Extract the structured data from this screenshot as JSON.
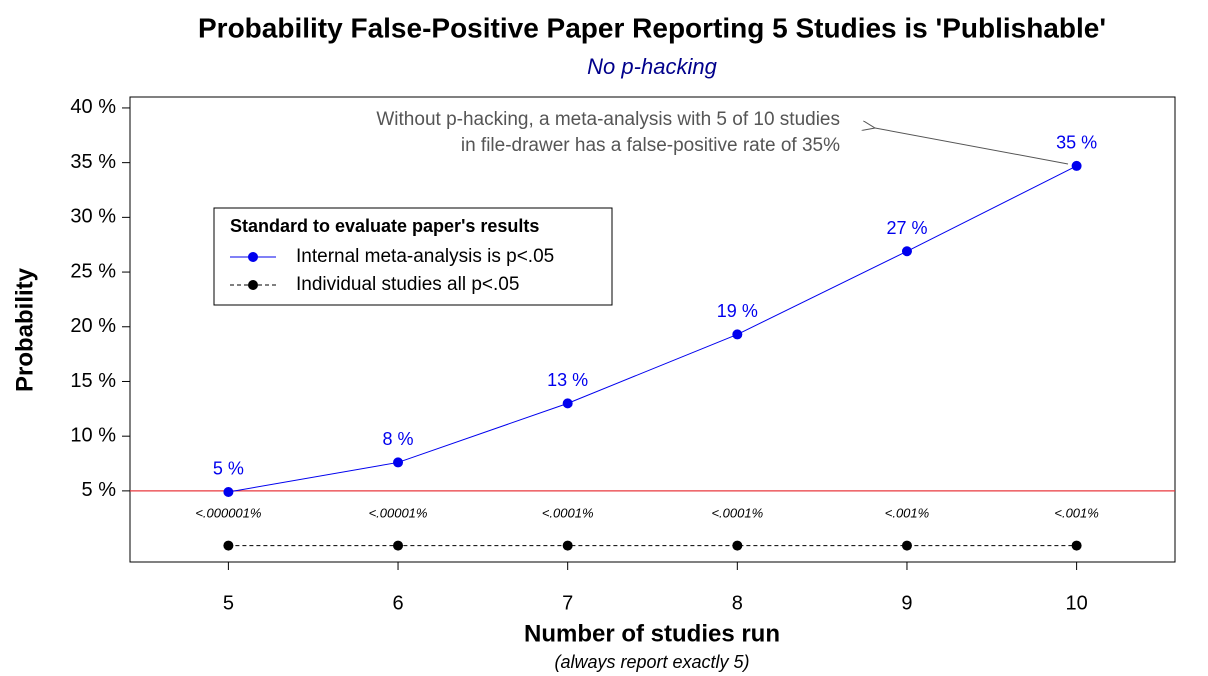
{
  "chart_data": {
    "type": "line",
    "title": "Probability False-Positive Paper Reporting 5 Studies is 'Publishable'",
    "subtitle": "No p-hacking",
    "x_label": "Number of studies run",
    "x_sublabel": "(always report exactly 5)",
    "y_label": "Probability",
    "x": [
      5,
      6,
      7,
      8,
      9,
      10
    ],
    "xlim": [
      4.42,
      10.58
    ],
    "xticks": [
      5,
      6,
      7,
      8,
      9,
      10
    ],
    "ylim": [
      -1.5,
      41
    ],
    "yticks": [
      {
        "value": 5,
        "label": "5 %"
      },
      {
        "value": 10,
        "label": "10 %"
      },
      {
        "value": 15,
        "label": "15 %"
      },
      {
        "value": 20,
        "label": "20 %"
      },
      {
        "value": 25,
        "label": "25 %"
      },
      {
        "value": 30,
        "label": "30 %"
      },
      {
        "value": 35,
        "label": "35 %"
      },
      {
        "value": 40,
        "label": "40 %"
      }
    ],
    "reference_line": {
      "value": 5,
      "color": "#e8393f"
    },
    "legend_title": "Standard to evaluate paper's results",
    "series": [
      {
        "name": "Internal meta-analysis is p<.05",
        "color": "#0000ee",
        "dashed": false,
        "values": [
          4.9,
          7.6,
          13.0,
          19.3,
          26.9,
          34.7
        ],
        "value_labels": [
          "5 %",
          "8 %",
          "13 %",
          "19 %",
          "27 %",
          "35 %"
        ]
      },
      {
        "name": "Individual studies all p<.05",
        "color": "#000000",
        "dashed": true,
        "values": [
          0,
          0,
          0,
          0,
          0,
          0
        ],
        "value_labels": [
          "<.000001%",
          "<.00001%",
          "<.0001%",
          "<.0001%",
          "<.001%",
          "<.001%"
        ]
      }
    ],
    "annotation": [
      "Without p-hacking, a meta-analysis with 5 of 10 studies",
      "in file-drawer has a false-positive rate of 35%"
    ]
  }
}
